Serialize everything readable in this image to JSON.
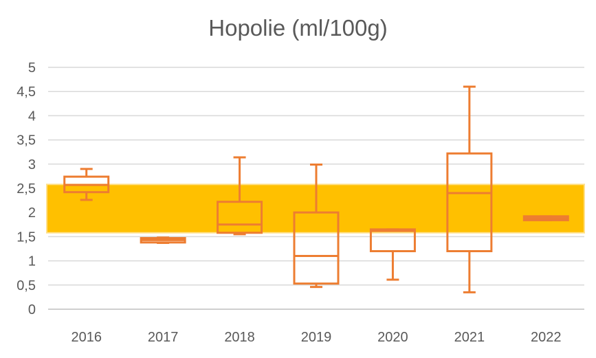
{
  "chart_data": {
    "type": "boxplot",
    "title": "Hopolie (ml/100g)",
    "xlabel": "",
    "ylabel": "",
    "ylim": [
      0,
      5
    ],
    "y_ticks": [
      "0",
      "0,5",
      "1",
      "1,5",
      "2",
      "2,5",
      "3",
      "3,5",
      "4",
      "4,5",
      "5"
    ],
    "grid": true,
    "categories": [
      "2016",
      "2017",
      "2018",
      "2019",
      "2020",
      "2021",
      "2022"
    ],
    "boxes": [
      {
        "min": 2.26,
        "q1": 2.42,
        "median": 2.57,
        "q3": 2.74,
        "max": 2.9
      },
      {
        "min": 1.37,
        "q1": 1.38,
        "median": 1.43,
        "q3": 1.47,
        "max": 1.48
      },
      {
        "min": 1.55,
        "q1": 1.58,
        "median": 1.75,
        "q3": 2.22,
        "max": 3.14
      },
      {
        "min": 0.46,
        "q1": 0.53,
        "median": 1.1,
        "q3": 2.0,
        "max": 2.99
      },
      {
        "min": 0.61,
        "q1": 1.2,
        "median": 1.62,
        "q3": 1.65,
        "max": 1.65
      },
      {
        "min": 0.35,
        "q1": 1.2,
        "median": 2.4,
        "q3": 3.22,
        "max": 4.6
      },
      {
        "min": 1.84,
        "q1": 1.84,
        "median": 1.88,
        "q3": 1.92,
        "max": 1.92
      }
    ],
    "reference_band": {
      "from": 1.58,
      "to": 2.58,
      "color": "#FFC000"
    },
    "box_color": "#ED7D31"
  }
}
